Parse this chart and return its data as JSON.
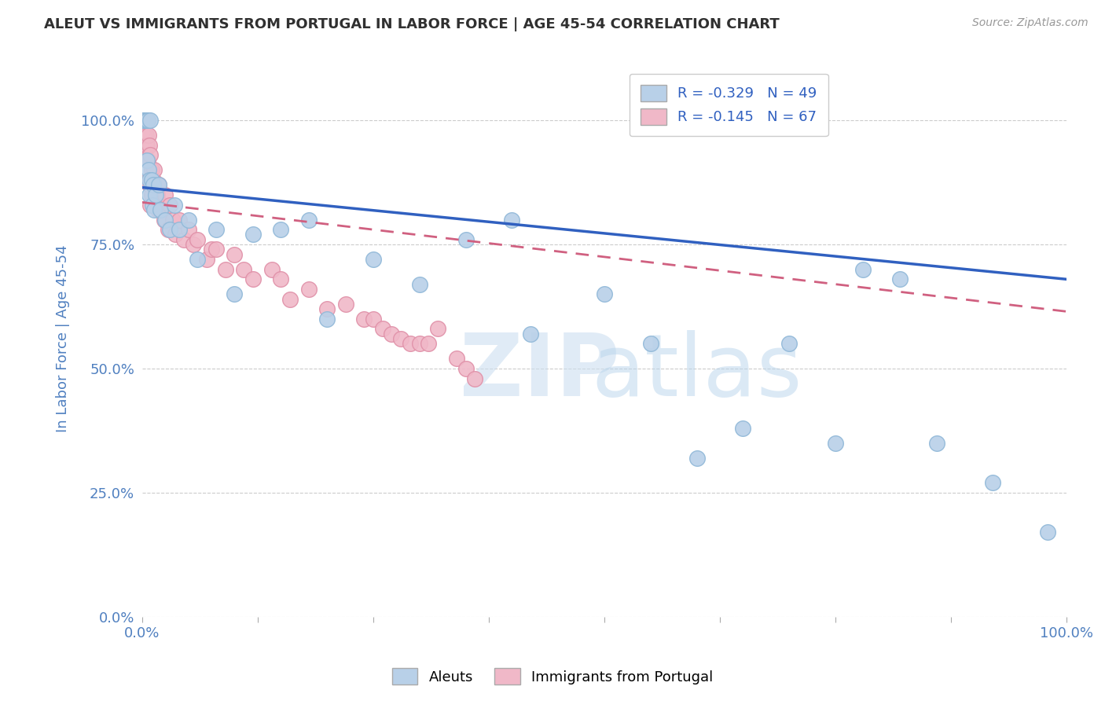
{
  "title": "ALEUT VS IMMIGRANTS FROM PORTUGAL IN LABOR FORCE | AGE 45-54 CORRELATION CHART",
  "source": "Source: ZipAtlas.com",
  "ylabel": "In Labor Force | Age 45-54",
  "y_tick_labels": [
    "0.0%",
    "25.0%",
    "50.0%",
    "75.0%",
    "100.0%"
  ],
  "y_tick_values": [
    0.0,
    0.25,
    0.5,
    0.75,
    1.0
  ],
  "legend_label1": "Aleuts",
  "legend_label2": "Immigrants from Portugal",
  "R1": -0.329,
  "N1": 49,
  "R2": -0.145,
  "N2": 67,
  "blue_color": "#b8d0e8",
  "blue_edge": "#90b8d8",
  "blue_line": "#3060c0",
  "pink_color": "#f0b8c8",
  "pink_edge": "#e090a8",
  "pink_line": "#d06080",
  "bg_color": "#ffffff",
  "grid_color": "#cccccc",
  "title_color": "#303030",
  "axis_label_color": "#5080c0",
  "aleuts_x": [
    0.001,
    0.002,
    0.002,
    0.003,
    0.003,
    0.004,
    0.004,
    0.005,
    0.005,
    0.006,
    0.007,
    0.008,
    0.008,
    0.009,
    0.01,
    0.011,
    0.012,
    0.013,
    0.015,
    0.018,
    0.02,
    0.025,
    0.03,
    0.035,
    0.04,
    0.05,
    0.06,
    0.08,
    0.1,
    0.12,
    0.15,
    0.18,
    0.2,
    0.25,
    0.3,
    0.35,
    0.4,
    0.42,
    0.5,
    0.55,
    0.6,
    0.65,
    0.7,
    0.75,
    0.78,
    0.82,
    0.86,
    0.92,
    0.98
  ],
  "aleuts_y": [
    1.0,
    1.0,
    1.0,
    1.0,
    1.0,
    1.0,
    1.0,
    1.0,
    0.92,
    1.0,
    0.9,
    0.88,
    0.85,
    1.0,
    0.88,
    0.83,
    0.87,
    0.82,
    0.85,
    0.87,
    0.82,
    0.8,
    0.78,
    0.83,
    0.78,
    0.8,
    0.72,
    0.78,
    0.65,
    0.77,
    0.78,
    0.8,
    0.6,
    0.72,
    0.67,
    0.76,
    0.8,
    0.57,
    0.65,
    0.55,
    0.32,
    0.38,
    0.55,
    0.35,
    0.7,
    0.68,
    0.35,
    0.27,
    0.17
  ],
  "portugal_x": [
    0.001,
    0.001,
    0.002,
    0.002,
    0.003,
    0.003,
    0.003,
    0.004,
    0.004,
    0.005,
    0.005,
    0.006,
    0.006,
    0.007,
    0.007,
    0.008,
    0.008,
    0.009,
    0.009,
    0.01,
    0.01,
    0.011,
    0.012,
    0.013,
    0.014,
    0.015,
    0.016,
    0.017,
    0.018,
    0.02,
    0.022,
    0.024,
    0.025,
    0.028,
    0.03,
    0.033,
    0.036,
    0.04,
    0.045,
    0.05,
    0.055,
    0.06,
    0.07,
    0.075,
    0.08,
    0.09,
    0.1,
    0.11,
    0.12,
    0.14,
    0.15,
    0.16,
    0.18,
    0.2,
    0.22,
    0.24,
    0.25,
    0.26,
    0.27,
    0.28,
    0.29,
    0.3,
    0.31,
    0.32,
    0.34,
    0.35,
    0.36
  ],
  "portugal_y": [
    1.0,
    0.98,
    1.0,
    0.97,
    1.0,
    0.97,
    0.93,
    0.97,
    0.95,
    1.0,
    0.95,
    1.0,
    0.92,
    0.97,
    0.88,
    0.95,
    0.87,
    0.93,
    0.83,
    0.9,
    0.85,
    0.88,
    0.88,
    0.9,
    0.83,
    0.86,
    0.85,
    0.82,
    0.87,
    0.82,
    0.83,
    0.8,
    0.85,
    0.78,
    0.83,
    0.8,
    0.77,
    0.8,
    0.76,
    0.78,
    0.75,
    0.76,
    0.72,
    0.74,
    0.74,
    0.7,
    0.73,
    0.7,
    0.68,
    0.7,
    0.68,
    0.64,
    0.66,
    0.62,
    0.63,
    0.6,
    0.6,
    0.58,
    0.57,
    0.56,
    0.55,
    0.55,
    0.55,
    0.58,
    0.52,
    0.5,
    0.48
  ]
}
